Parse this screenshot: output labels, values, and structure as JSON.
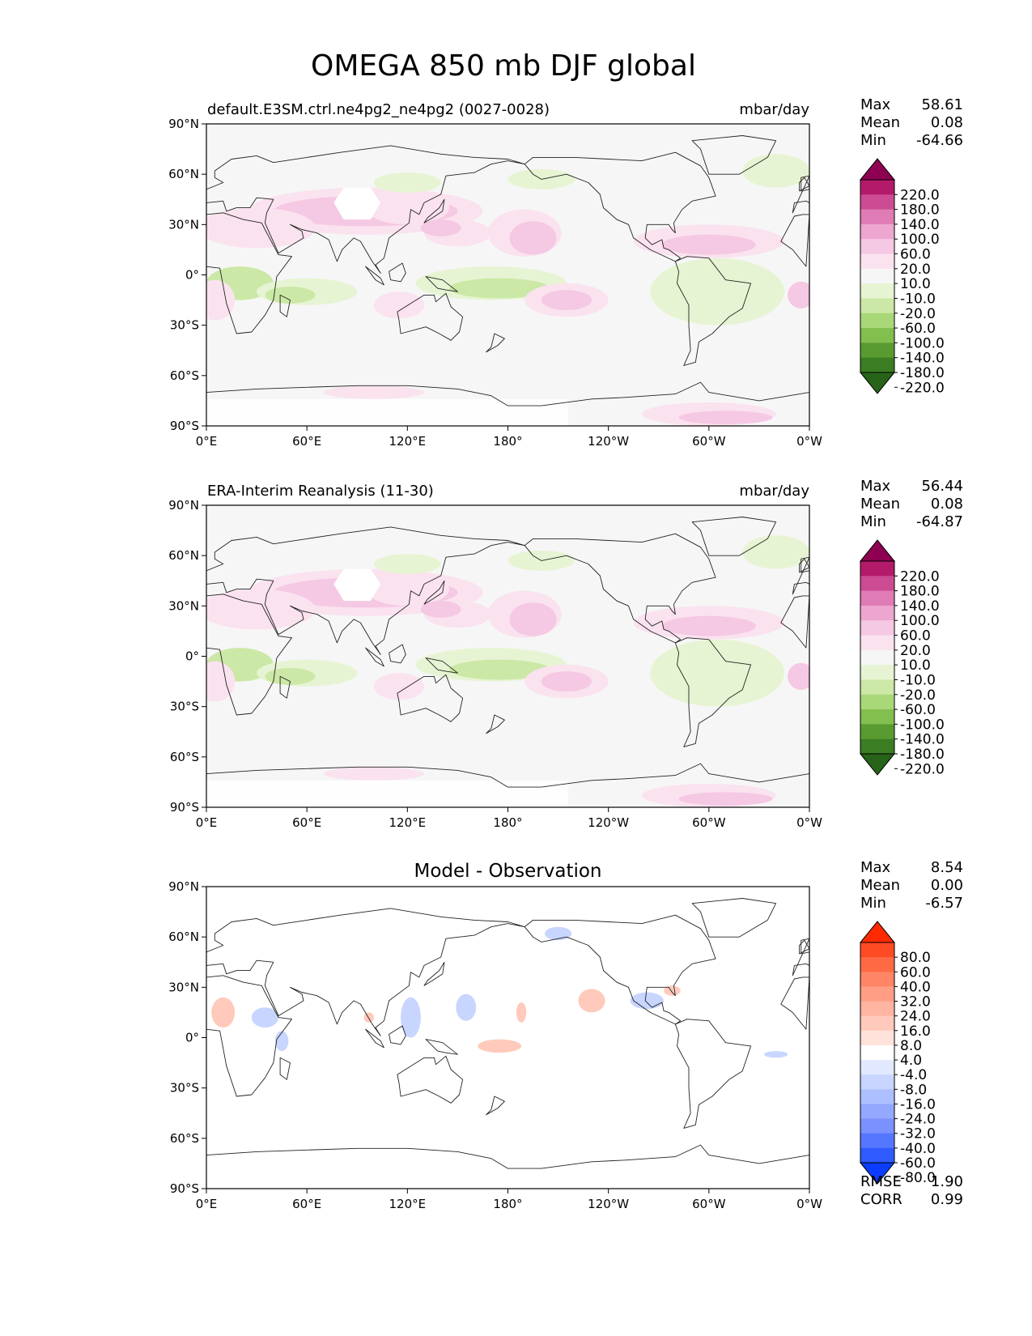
{
  "title": "OMEGA 850 mb DJF global",
  "x_ticks": [
    "0°E",
    "60°E",
    "120°E",
    "180°",
    "120°W",
    "60°W",
    "0°W"
  ],
  "y_ticks": [
    "90°N",
    "60°N",
    "30°N",
    "0°",
    "30°S",
    "60°S",
    "90°S"
  ],
  "panels": [
    {
      "id": "model",
      "left_title": "default.E3SM.ctrl.ne4pg2_ne4pg2 (0027-0028)",
      "center_title": "",
      "units": "mbar/day",
      "stats": [
        {
          "label": "Max",
          "value": "58.61"
        },
        {
          "label": "Mean",
          "value": "0.08"
        },
        {
          "label": "Min",
          "value": "-64.66"
        }
      ],
      "levels": [
        "220.0",
        "180.0",
        "140.0",
        "100.0",
        "60.0",
        "20.0",
        "10.0",
        "-10.0",
        "-20.0",
        "-60.0",
        "-100.0",
        "-140.0",
        "-180.0",
        "-220.0"
      ],
      "colors": [
        "#8e0152",
        "#b41a6a",
        "#cc4b92",
        "#df7cb5",
        "#eda6d0",
        "#f5c8e3",
        "#fae2ef",
        "#f6f6f6",
        "#e7f4d3",
        "#cce8a6",
        "#a9d878",
        "#82bf4e",
        "#5a9b31",
        "#3a7d22",
        "#276419"
      ]
    },
    {
      "id": "obs",
      "left_title": "ERA-Interim Reanalysis (11-30)",
      "center_title": "",
      "units": "mbar/day",
      "stats": [
        {
          "label": "Max",
          "value": "56.44"
        },
        {
          "label": "Mean",
          "value": "0.08"
        },
        {
          "label": "Min",
          "value": "-64.87"
        }
      ],
      "levels": [
        "220.0",
        "180.0",
        "140.0",
        "100.0",
        "60.0",
        "20.0",
        "10.0",
        "-10.0",
        "-20.0",
        "-60.0",
        "-100.0",
        "-140.0",
        "-180.0",
        "-220.0"
      ],
      "colors": [
        "#8e0152",
        "#b41a6a",
        "#cc4b92",
        "#df7cb5",
        "#eda6d0",
        "#f5c8e3",
        "#fae2ef",
        "#f6f6f6",
        "#e7f4d3",
        "#cce8a6",
        "#a9d878",
        "#82bf4e",
        "#5a9b31",
        "#3a7d22",
        "#276419"
      ]
    },
    {
      "id": "diff",
      "left_title": "",
      "center_title": "Model - Observation",
      "units": "",
      "stats": [
        {
          "label": "Max",
          "value": "8.54"
        },
        {
          "label": "Mean",
          "value": "0.00"
        },
        {
          "label": "Min",
          "value": "-6.57"
        }
      ],
      "extra_stats": [
        {
          "label": "RMSE",
          "value": "1.90"
        },
        {
          "label": "CORR",
          "value": "0.99"
        }
      ],
      "levels": [
        "80.0",
        "60.0",
        "40.0",
        "32.0",
        "24.0",
        "16.0",
        "8.0",
        "4.0",
        "-4.0",
        "-8.0",
        "-16.0",
        "-24.0",
        "-32.0",
        "-40.0",
        "-60.0",
        "-80.0"
      ],
      "colors": [
        "#ff2a00",
        "#ff4b24",
        "#ff6a45",
        "#ff8566",
        "#ff9e84",
        "#ffb5a2",
        "#ffcabc",
        "#ffe3db",
        "#ffffff",
        "#e2e9ff",
        "#c8d5ff",
        "#aebfff",
        "#94a8ff",
        "#7a91ff",
        "#5577ff",
        "#2f5bff",
        "#0a3dff"
      ]
    }
  ],
  "map_palette": {
    "land_outline": "#222222",
    "pink": "#f5c8e3",
    "pink_light": "#fae2ef",
    "green": "#cce8a6",
    "green_light": "#e7f4d3",
    "background": "#f6f6f6",
    "red_light": "#ffcabc",
    "blue_light": "#c8d5ff"
  }
}
